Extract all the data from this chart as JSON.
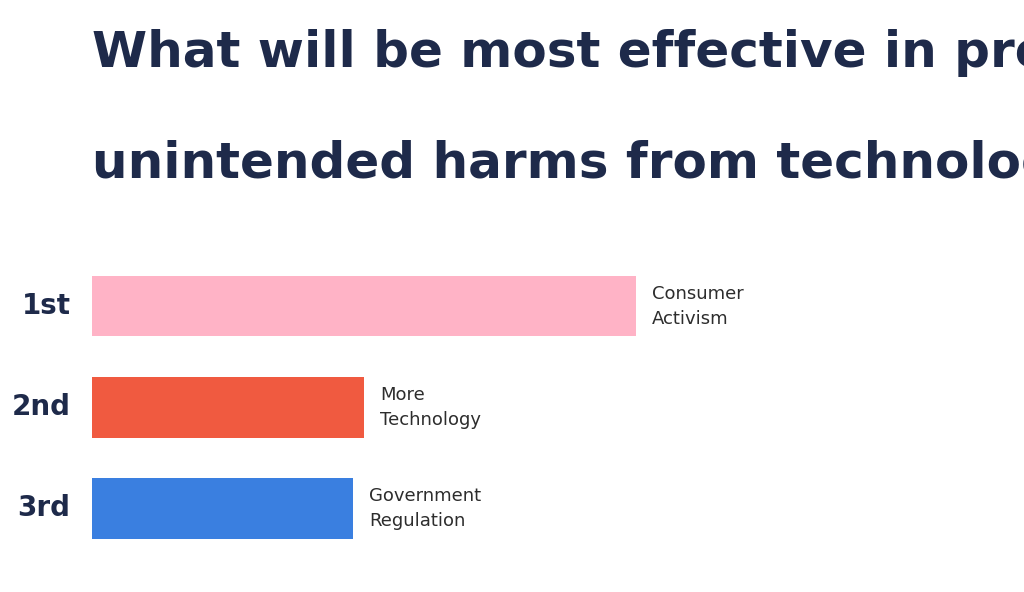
{
  "title_line1": "What will be most effective in preventing",
  "title_line2": "unintended harms from technology?",
  "categories": [
    "1st",
    "2nd",
    "3rd"
  ],
  "labels": [
    "Consumer\nActivism",
    "More\nTechnology",
    "Government\nRegulation"
  ],
  "values": [
    50,
    25,
    24
  ],
  "bar_colors": [
    "#FFB3C6",
    "#F05A40",
    "#3A7FE0"
  ],
  "background_color": "#FFFFFF",
  "title_color": "#1E2A4A",
  "label_color": "#2D2D2D",
  "tick_label_color": "#1E2A4A",
  "xlim": [
    0,
    65
  ],
  "bar_height": 0.6,
  "title_fontsize": 36,
  "tick_fontsize": 20,
  "label_fontsize": 13
}
